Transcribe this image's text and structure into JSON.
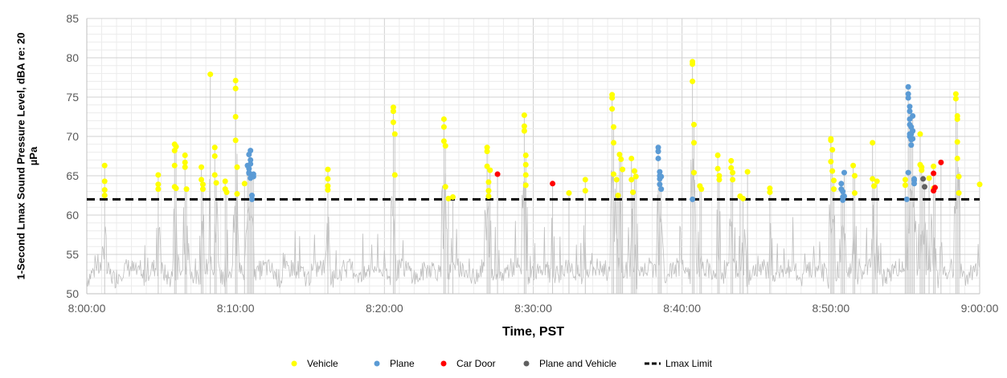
{
  "chart_data": {
    "type": "scatter",
    "xlabel": "Time, PST",
    "ylabel": "1-Second Lmax Sound Pressure Level, dBA re: 20 µPa",
    "x_ticks": [
      "8:00:00",
      "8:10:00",
      "8:20:00",
      "8:30:00",
      "8:40:00",
      "8:50:00",
      "9:00:00"
    ],
    "xlim_minutes": [
      0,
      60
    ],
    "ylim": [
      50,
      85
    ],
    "y_ticks": [
      50,
      55,
      60,
      65,
      70,
      75,
      80,
      85
    ],
    "grid": true,
    "legend_position": "bottom",
    "lmax_limit": 62,
    "colors": {
      "Vehicle": "#ffff00",
      "Plane": "#5b9bd5",
      "Car Door": "#ff0000",
      "Plane and Vehicle": "#606060",
      "Lmax Limit": "#000000",
      "background_trace": "#bfbfbf"
    },
    "legend": [
      "Vehicle",
      "Plane",
      "Car Door",
      "Plane and Vehicle",
      "Lmax Limit"
    ],
    "series": [
      {
        "name": "Vehicle",
        "x_minutes": [
          1.2,
          1.2,
          1.2,
          1.2,
          4.8,
          4.8,
          4.8,
          5.9,
          5.9,
          5.9,
          5.9,
          6.0,
          6.0,
          6.6,
          6.6,
          6.6,
          6.7,
          7.7,
          7.7,
          7.8,
          7.8,
          8.3,
          8.6,
          8.6,
          8.6,
          8.7,
          9.3,
          9.3,
          9.4,
          10.0,
          10.0,
          10.0,
          10.0,
          10.1,
          10.1,
          10.6,
          16.2,
          16.2,
          16.2,
          16.2,
          20.6,
          20.6,
          20.6,
          20.7,
          20.7,
          24.0,
          24.0,
          24.0,
          24.1,
          24.1,
          24.3,
          24.6,
          26.9,
          26.9,
          26.9,
          27.0,
          27.0,
          27.0,
          27.1,
          29.4,
          29.4,
          29.4,
          29.5,
          29.5,
          29.5,
          29.5,
          32.4,
          33.5,
          33.5,
          35.3,
          35.3,
          35.3,
          35.4,
          35.4,
          35.4,
          35.6,
          35.7,
          35.8,
          35.9,
          36.0,
          36.6,
          36.6,
          36.7,
          36.8,
          36.9,
          40.7,
          40.7,
          40.7,
          40.8,
          40.8,
          40.8,
          41.2,
          41.3,
          42.4,
          42.4,
          42.5,
          42.5,
          43.3,
          43.3,
          43.4,
          43.4,
          43.9,
          44.1,
          44.4,
          45.9,
          45.9,
          50.0,
          50.0,
          50.0,
          50.1,
          50.1,
          50.2,
          50.2,
          51.5,
          51.6,
          51.6,
          52.8,
          52.8,
          52.9,
          53.1,
          55.0,
          55.0,
          56.0,
          56.0,
          56.1,
          56.1,
          56.6,
          56.9,
          56.9,
          58.4,
          58.4,
          58.5,
          58.5,
          58.5,
          58.5,
          58.6,
          58.6,
          60.0
        ],
        "y": [
          66.3,
          64.3,
          63.2,
          62.5,
          65.1,
          63.9,
          63.3,
          69.0,
          68.2,
          66.3,
          63.6,
          68.7,
          63.4,
          67.6,
          66.7,
          66.1,
          63.3,
          66.1,
          64.5,
          63.9,
          63.3,
          77.9,
          68.6,
          67.5,
          65.1,
          64.1,
          64.3,
          63.3,
          62.9,
          77.1,
          76.1,
          72.5,
          69.5,
          66.1,
          62.7,
          64.0,
          65.8,
          64.6,
          63.7,
          63.2,
          73.7,
          73.2,
          71.8,
          70.3,
          65.1,
          72.2,
          71.2,
          69.4,
          68.8,
          63.6,
          62.1,
          62.3,
          68.6,
          68.1,
          66.2,
          64.2,
          63.1,
          62.4,
          65.7,
          72.7,
          71.3,
          70.7,
          67.6,
          66.4,
          65.1,
          63.8,
          62.8,
          64.5,
          63.1,
          75.3,
          74.9,
          73.5,
          71.2,
          69.2,
          65.2,
          64.5,
          62.5,
          67.7,
          67.1,
          65.8,
          67.2,
          64.5,
          62.9,
          65.6,
          64.9,
          79.5,
          79.2,
          77.0,
          71.5,
          69.2,
          65.4,
          63.7,
          63.3,
          67.6,
          65.9,
          65.0,
          64.5,
          66.9,
          66.0,
          65.4,
          64.5,
          62.4,
          62.1,
          65.5,
          63.4,
          62.9,
          69.7,
          69.5,
          66.8,
          68.3,
          65.6,
          64.4,
          63.3,
          66.3,
          65.0,
          62.8,
          69.2,
          64.6,
          63.7,
          64.3,
          64.5,
          63.8,
          70.3,
          66.4,
          66.1,
          65.7,
          64.7,
          66.2,
          63.4,
          75.4,
          74.8,
          72.6,
          72.2,
          69.3,
          67.2,
          64.9,
          62.8,
          63.9
        ]
      },
      {
        "name": "Plane",
        "x_minutes": [
          10.8,
          10.9,
          10.9,
          10.9,
          11.0,
          11.0,
          10.9,
          11.0,
          11.0,
          11.1,
          11.1,
          11.1,
          11.2,
          11.2,
          38.4,
          38.4,
          38.4,
          38.5,
          38.5,
          38.5,
          38.5,
          38.6,
          38.6,
          40.7,
          50.7,
          50.7,
          50.8,
          50.8,
          50.8,
          50.9,
          50.9,
          55.2,
          55.2,
          55.2,
          55.3,
          55.3,
          55.3,
          55.3,
          55.3,
          55.3,
          55.4,
          55.4,
          55.4,
          55.5,
          55.5,
          55.5,
          55.6,
          55.6,
          55.1,
          55.2,
          55.4,
          55.6
        ],
        "y": [
          66.3,
          65.9,
          65.4,
          67.7,
          68.2,
          67.0,
          65.3,
          64.7,
          66.5,
          65.0,
          62.5,
          62.0,
          65.2,
          64.9,
          68.6,
          68.1,
          67.2,
          65.5,
          65.0,
          64.6,
          63.9,
          64.9,
          63.3,
          62.0,
          64.0,
          63.3,
          63.0,
          62.3,
          61.9,
          62.4,
          65.4,
          76.3,
          75.4,
          74.9,
          73.8,
          73.2,
          72.2,
          71.5,
          70.3,
          70.0,
          69.6,
          71.2,
          70.3,
          69.7,
          70.7,
          72.6,
          64.4,
          64.0,
          62.0,
          65.4,
          68.9,
          64.6
        ]
      },
      {
        "name": "Car Door",
        "x_minutes": [
          27.6,
          31.3,
          56.9,
          56.9,
          57.0,
          57.4
        ],
        "y": [
          65.2,
          64.0,
          65.3,
          63.1,
          63.5,
          66.7
        ]
      },
      {
        "name": "Plane and Vehicle",
        "x_minutes": [
          56.2,
          56.3
        ],
        "y": [
          64.6,
          63.6
        ]
      }
    ]
  }
}
